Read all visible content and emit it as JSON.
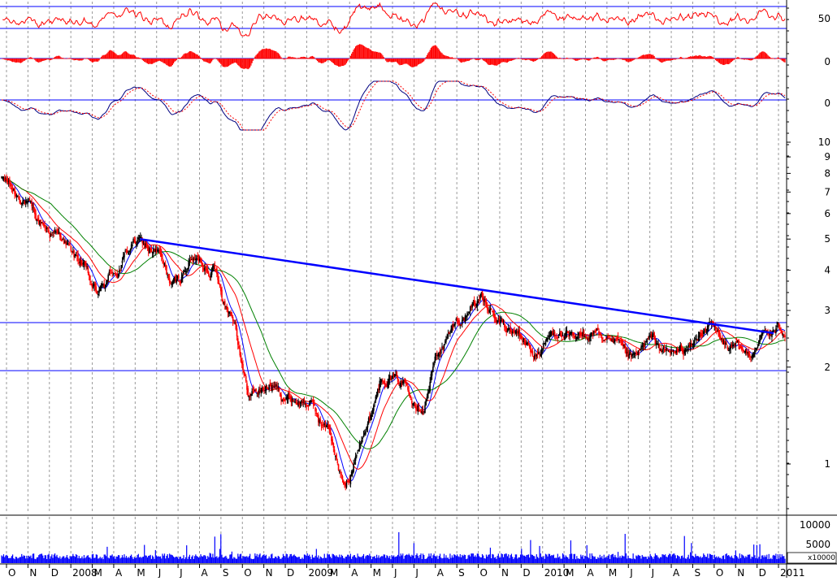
{
  "chart_data": {
    "type": "candlestick",
    "colors": {
      "background": "#ffffff",
      "grid": "#9a9a9a",
      "up_candle": "#000000",
      "down_candle": "#ff0000",
      "trendline": "#0000ff",
      "support_resistance": "#0000ff",
      "ma_short": "#0000ff",
      "ma_mid": "#ff0000",
      "ma_long": "#008000",
      "rsi": "#ff0000",
      "macd_hist": "#ff0000",
      "momentum": "#000080",
      "volume": "#0000ff"
    },
    "x_axis": {
      "ticks": [
        "O",
        "N",
        "D",
        "2008",
        "M",
        "A",
        "M",
        "J",
        "J",
        "A",
        "S",
        "O",
        "N",
        "D",
        "2009",
        "M",
        "A",
        "M",
        "J",
        "J",
        "A",
        "S",
        "O",
        "N",
        "D",
        "2010",
        "M",
        "A",
        "M",
        "J",
        "J",
        "A",
        "S",
        "O",
        "N",
        "D",
        "2011"
      ]
    },
    "panels": {
      "rsi": {
        "ytick": "50",
        "levels": [
          30,
          70
        ]
      },
      "macd": {
        "ytick": "0"
      },
      "momentum": {
        "ytick": "0"
      },
      "price": {
        "scale": "log",
        "yticks": [
          "10",
          "9",
          "8",
          "7",
          "6",
          "5",
          "4",
          "3",
          "2",
          "1"
        ],
        "ytick_values": [
          10,
          9,
          8,
          7,
          6,
          5,
          4,
          3,
          2,
          1
        ],
        "support": 1.95,
        "resistance": 2.75,
        "trendline": [
          [
            5.0,
            "2008-06"
          ],
          [
            2.55,
            "2011-01"
          ]
        ],
        "anchors": [
          7.6,
          6.8,
          5.6,
          5.1,
          4.3,
          3.4,
          4.0,
          4.9,
          4.6,
          3.6,
          4.3,
          4.1,
          3.0,
          1.65,
          1.75,
          1.6,
          1.55,
          1.3,
          0.85,
          1.3,
          1.9,
          1.8,
          1.55,
          2.3,
          2.8,
          3.3,
          2.7,
          2.5,
          2.2,
          2.6,
          2.4,
          2.6,
          2.3,
          2.1,
          2.4,
          2.2,
          2.3,
          2.7,
          2.3,
          2.2,
          2.55,
          2.6
        ]
      },
      "volume": {
        "yticks": [
          "10000",
          "5000"
        ],
        "ytick_values": [
          10000,
          5000
        ],
        "unit": "x10000"
      }
    }
  }
}
